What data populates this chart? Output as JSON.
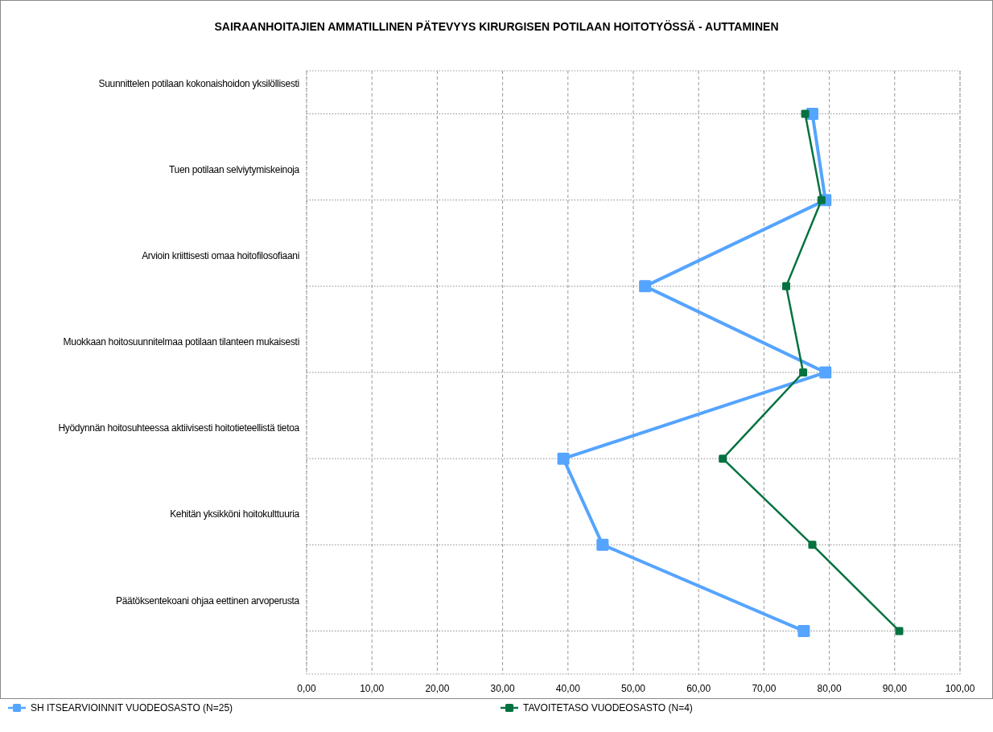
{
  "chart_data": {
    "type": "line",
    "orientation": "horizontal",
    "title": "SAIRAANHOITAJIEN AMMATILLINEN PÄTEVYYS KIRURGISEN POTILAAN HOITOTYÖSSÄ - AUTTAMINEN",
    "categories": [
      "Suunnittelen potilaan kokonaishoidon yksilöllisesti",
      "Tuen potilaan selviytymiskeinoja",
      "Arvioin kriittisesti omaa hoitofilosofiaani",
      "Muokkaan hoitosuunnitelmaa potilaan tilanteen mukaisesti",
      "Hyödynnän hoitosuhteessa aktiivisesti hoitotieteellistä tietoa",
      "Kehitän yksikköni hoitokulttuuria",
      "Päätöksentekoani ohjaa eettinen arvoperusta"
    ],
    "series": [
      {
        "name": "SH ITSEARVIOINNIT VUODEOSASTO (N=25)",
        "color": "#55a4ff",
        "values": [
          77.4,
          79.4,
          51.8,
          79.4,
          39.3,
          45.3,
          76.1
        ]
      },
      {
        "name": "TAVOITETASO VUODEOSASTO (N=4)",
        "color": "#047240",
        "values": [
          76.3,
          78.8,
          73.4,
          76.0,
          63.7,
          77.4,
          90.7
        ]
      }
    ],
    "xlim": [
      0,
      100
    ],
    "xticks": [
      {
        "value": 0,
        "label": "0,00"
      },
      {
        "value": 10,
        "label": "10,00"
      },
      {
        "value": 20,
        "label": "20,00"
      },
      {
        "value": 30,
        "label": "30,00"
      },
      {
        "value": 40,
        "label": "40,00"
      },
      {
        "value": 50,
        "label": "50,00"
      },
      {
        "value": 60,
        "label": "60,00"
      },
      {
        "value": 70,
        "label": "70,00"
      },
      {
        "value": 80,
        "label": "80,00"
      },
      {
        "value": 90,
        "label": "90,00"
      },
      {
        "value": 100,
        "label": "100,00"
      }
    ],
    "grid": true,
    "marker": "square",
    "legend": "bottom",
    "line_style": "solid"
  }
}
